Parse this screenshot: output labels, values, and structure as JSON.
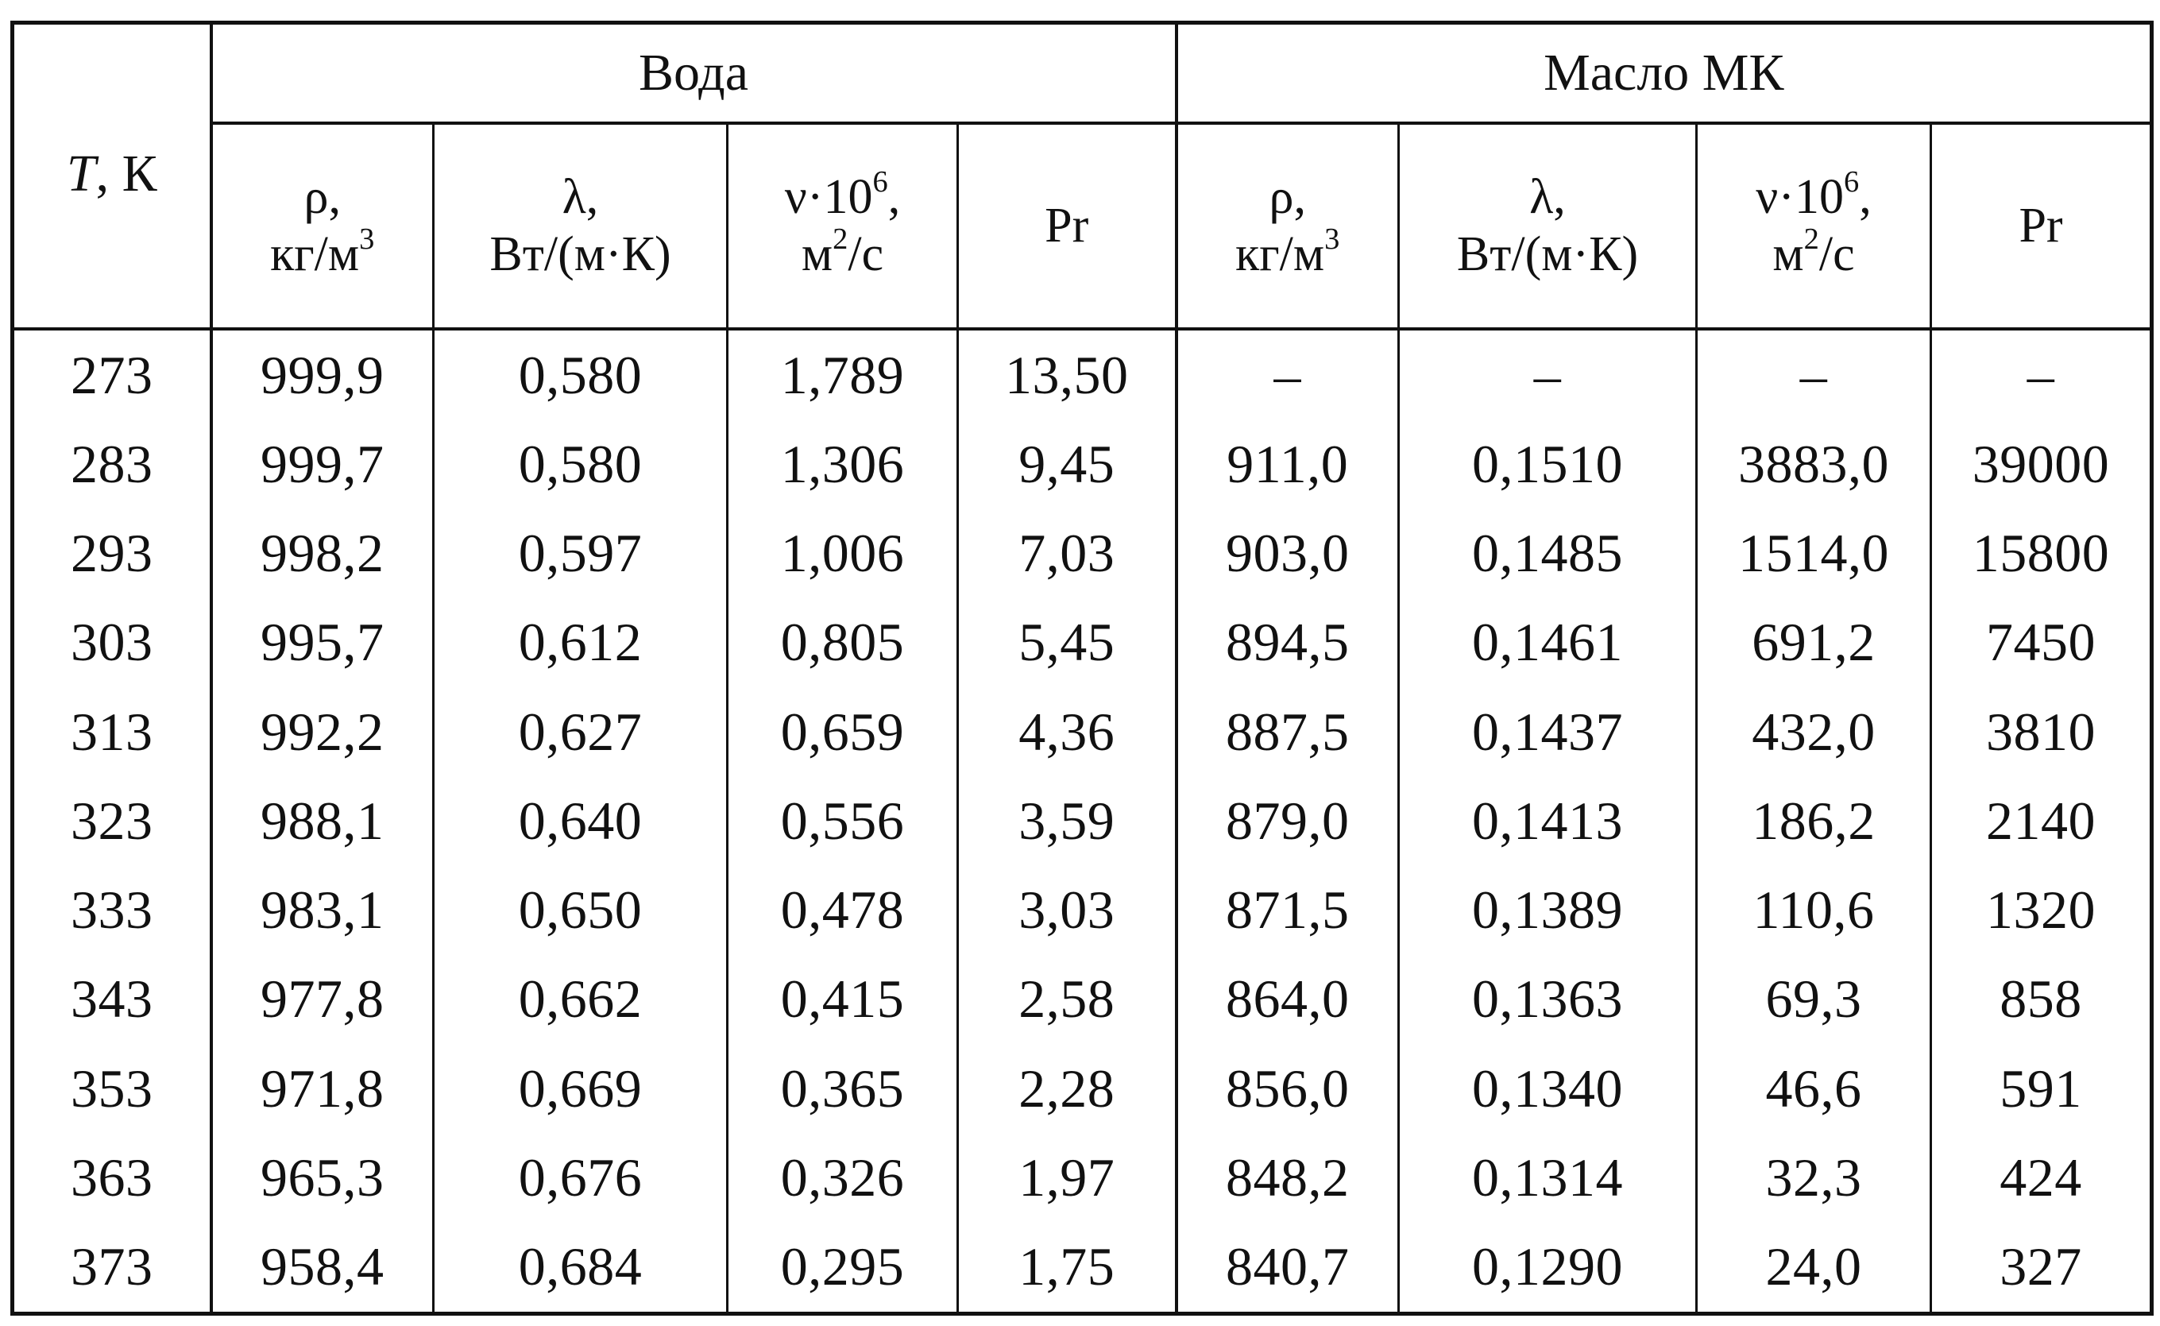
{
  "table": {
    "t_header": {
      "symbol": "T",
      "unit": ", К"
    },
    "groups": [
      {
        "label": "Вода"
      },
      {
        "label": "Масло МК"
      }
    ],
    "columns": [
      {
        "sym": "ρ,",
        "unit_pre": "кг/м",
        "unit_sup": "3",
        "unit_post": ""
      },
      {
        "sym": "λ,",
        "unit_pre": "Вт/(м·К)",
        "unit_sup": "",
        "unit_post": ""
      },
      {
        "sym_pre": "ν·10",
        "sym_sup": "6",
        "sym_post": ",",
        "unit_pre": "м",
        "unit_sup": "2",
        "unit_post": "/с"
      },
      {
        "sym": "Pr"
      },
      {
        "sym": "ρ,",
        "unit_pre": "кг/м",
        "unit_sup": "3",
        "unit_post": ""
      },
      {
        "sym": "λ,",
        "unit_pre": "Вт/(м·К)",
        "unit_sup": "",
        "unit_post": ""
      },
      {
        "sym_pre": "ν·10",
        "sym_sup": "6",
        "sym_post": ",",
        "unit_pre": "м",
        "unit_sup": "2",
        "unit_post": "/с"
      },
      {
        "sym": "Pr"
      }
    ],
    "rows": [
      [
        "273",
        "999,9",
        "0,580",
        "1,789",
        "13,50",
        "–",
        "–",
        "–",
        "–"
      ],
      [
        "283",
        "999,7",
        "0,580",
        "1,306",
        "9,45",
        "911,0",
        "0,1510",
        "3883,0",
        "39000"
      ],
      [
        "293",
        "998,2",
        "0,597",
        "1,006",
        "7,03",
        "903,0",
        "0,1485",
        "1514,0",
        "15800"
      ],
      [
        "303",
        "995,7",
        "0,612",
        "0,805",
        "5,45",
        "894,5",
        "0,1461",
        "691,2",
        "7450"
      ],
      [
        "313",
        "992,2",
        "0,627",
        "0,659",
        "4,36",
        "887,5",
        "0,1437",
        "432,0",
        "3810"
      ],
      [
        "323",
        "988,1",
        "0,640",
        "0,556",
        "3,59",
        "879,0",
        "0,1413",
        "186,2",
        "2140"
      ],
      [
        "333",
        "983,1",
        "0,650",
        "0,478",
        "3,03",
        "871,5",
        "0,1389",
        "110,6",
        "1320"
      ],
      [
        "343",
        "977,8",
        "0,662",
        "0,415",
        "2,58",
        "864,0",
        "0,1363",
        "69,3",
        "858"
      ],
      [
        "353",
        "971,8",
        "0,669",
        "0,365",
        "2,28",
        "856,0",
        "0,1340",
        "46,6",
        "591"
      ],
      [
        "363",
        "965,3",
        "0,676",
        "0,326",
        "1,97",
        "848,2",
        "0,1314",
        "32,3",
        "424"
      ],
      [
        "373",
        "958,4",
        "0,684",
        "0,295",
        "1,75",
        "840,7",
        "0,1290",
        "24,0",
        "327"
      ]
    ]
  }
}
